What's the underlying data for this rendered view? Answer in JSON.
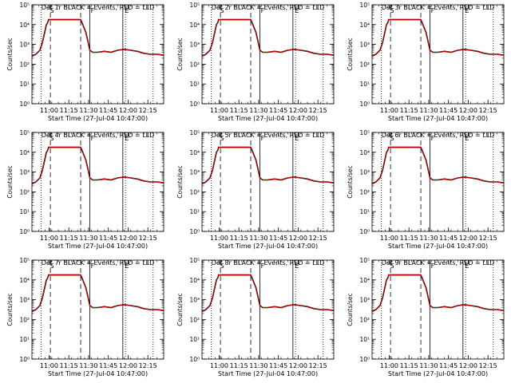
{
  "chart_data": {
    "type": "line",
    "layout": "3x3 grid",
    "xlabel": "Start Time (27-Jul-04 10:47:00)",
    "ylabel": "Counts/sec",
    "yscale": "log",
    "ylim_exp": [
      0,
      5
    ],
    "y_tick_labels": [
      "10⁰",
      "10¹",
      "10²",
      "10³",
      "10⁴",
      "10⁵"
    ],
    "x_tick_labels": [
      "11:00",
      "11:15",
      "11:30",
      "11:45",
      "12:00",
      "12:15"
    ],
    "x_ticks_min": [
      13,
      28,
      43,
      58,
      73,
      88
    ],
    "xlim_min": [
      0,
      100
    ],
    "marker_labels": {
      "S": "S",
      "F": "F",
      "E": "E"
    },
    "series_colors": {
      "events": "#000000",
      "lld": "#cc0000"
    },
    "vertical_lines": {
      "dotted": [
        7,
        71,
        92
      ],
      "dashed": [
        14,
        37
      ],
      "solid": [
        44,
        69
      ]
    },
    "markers_min": {
      "S": 13,
      "F": 44,
      "E": 70
    },
    "series": [
      {
        "name": "BLACK = Events",
        "x_min": [
          0,
          3,
          6,
          8,
          10,
          11,
          12,
          12.6,
          37,
          38,
          41,
          44,
          46,
          50,
          55,
          60,
          65,
          70,
          75,
          80,
          85,
          90,
          95,
          100
        ],
        "y_log": [
          2.4,
          2.5,
          2.7,
          3.1,
          3.7,
          4.0,
          4.1,
          4.25,
          4.25,
          4.1,
          3.6,
          2.7,
          2.6,
          2.6,
          2.65,
          2.6,
          2.7,
          2.75,
          2.7,
          2.65,
          2.55,
          2.5,
          2.5,
          2.45
        ]
      },
      {
        "name": "RED = LLD",
        "x_min": [
          0,
          3,
          6,
          8,
          10,
          11,
          12,
          12.6,
          37,
          38,
          41,
          44,
          46,
          50,
          55,
          60,
          65,
          70,
          75,
          80,
          85,
          90,
          95,
          100
        ],
        "y_log": [
          2.4,
          2.5,
          2.7,
          3.1,
          3.7,
          4.0,
          4.1,
          4.25,
          4.25,
          4.1,
          3.6,
          2.7,
          2.6,
          2.6,
          2.65,
          2.6,
          2.7,
          2.75,
          2.7,
          2.65,
          2.55,
          2.5,
          2.5,
          2.45
        ]
      }
    ],
    "panels": [
      {
        "title": "Det 1r BLACK = Events, RED = LLD"
      },
      {
        "title": "Det 2r BLACK = Events, RED = LLD"
      },
      {
        "title": "Det 3r BLACK = Events, RED = LLD"
      },
      {
        "title": "Det 4r BLACK = Events, RED = LLD"
      },
      {
        "title": "Det 5r BLACK = Events, RED = LLD"
      },
      {
        "title": "Det 6r BLACK = Events, RED = LLD"
      },
      {
        "title": "Det 7r BLACK = Events, RED = LLD"
      },
      {
        "title": "Det 8r BLACK = Events, RED = LLD"
      },
      {
        "title": "Det 9r BLACK = Events, RED = LLD"
      }
    ]
  }
}
